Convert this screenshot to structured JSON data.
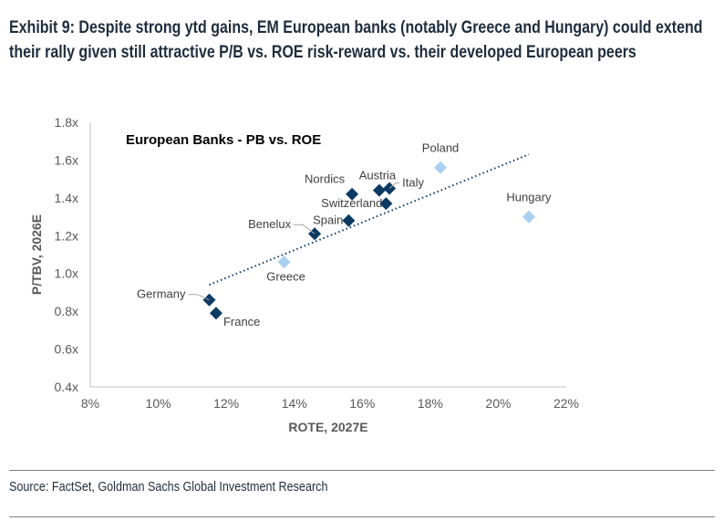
{
  "title": "Exhibit 9: Despite strong ytd gains, EM European banks (notably Greece and Hungary) could extend their rally given still attractive P/B vs. ROE risk-reward vs. their developed European peers",
  "source": "Source: FactSet, Goldman Sachs Global Investment Research",
  "chart_data": {
    "type": "scatter",
    "title": "European Banks - PB vs. ROE",
    "xlabel": "ROTE, 2027E",
    "ylabel": "P/TBV, 2026E",
    "xlim": [
      8,
      22
    ],
    "ylim": [
      0.4,
      1.8
    ],
    "xticks": [
      "8%",
      "10%",
      "12%",
      "14%",
      "16%",
      "18%",
      "20%",
      "22%"
    ],
    "yticks": [
      "0.4x",
      "0.6x",
      "0.8x",
      "1.0x",
      "1.2x",
      "1.4x",
      "1.6x",
      "1.8x"
    ],
    "grid": false,
    "colors": {
      "developed": "#0b3a63",
      "em": "#a9d0f0",
      "trendline": "#0b3a63"
    },
    "points": [
      {
        "label": "Poland",
        "x": 18.3,
        "y": 1.56,
        "group": "em"
      },
      {
        "label": "Hungary",
        "x": 20.9,
        "y": 1.3,
        "group": "em"
      },
      {
        "label": "Greece",
        "x": 13.7,
        "y": 1.06,
        "group": "em"
      },
      {
        "label": "Nordics",
        "x": 15.7,
        "y": 1.42,
        "group": "developed"
      },
      {
        "label": "Austria",
        "x": 16.5,
        "y": 1.44,
        "group": "developed"
      },
      {
        "label": "Italy",
        "x": 16.8,
        "y": 1.45,
        "group": "developed"
      },
      {
        "label": "Switzerland",
        "x": 16.7,
        "y": 1.37,
        "group": "developed"
      },
      {
        "label": "Spain",
        "x": 15.6,
        "y": 1.28,
        "group": "developed"
      },
      {
        "label": "Benelux",
        "x": 14.6,
        "y": 1.21,
        "group": "developed"
      },
      {
        "label": "Germany",
        "x": 11.5,
        "y": 0.86,
        "group": "developed"
      },
      {
        "label": "France",
        "x": 11.7,
        "y": 0.79,
        "group": "developed"
      }
    ],
    "trendline": {
      "style": "dotted",
      "x": [
        11.5,
        20.9
      ],
      "y": [
        0.94,
        1.63
      ]
    }
  }
}
